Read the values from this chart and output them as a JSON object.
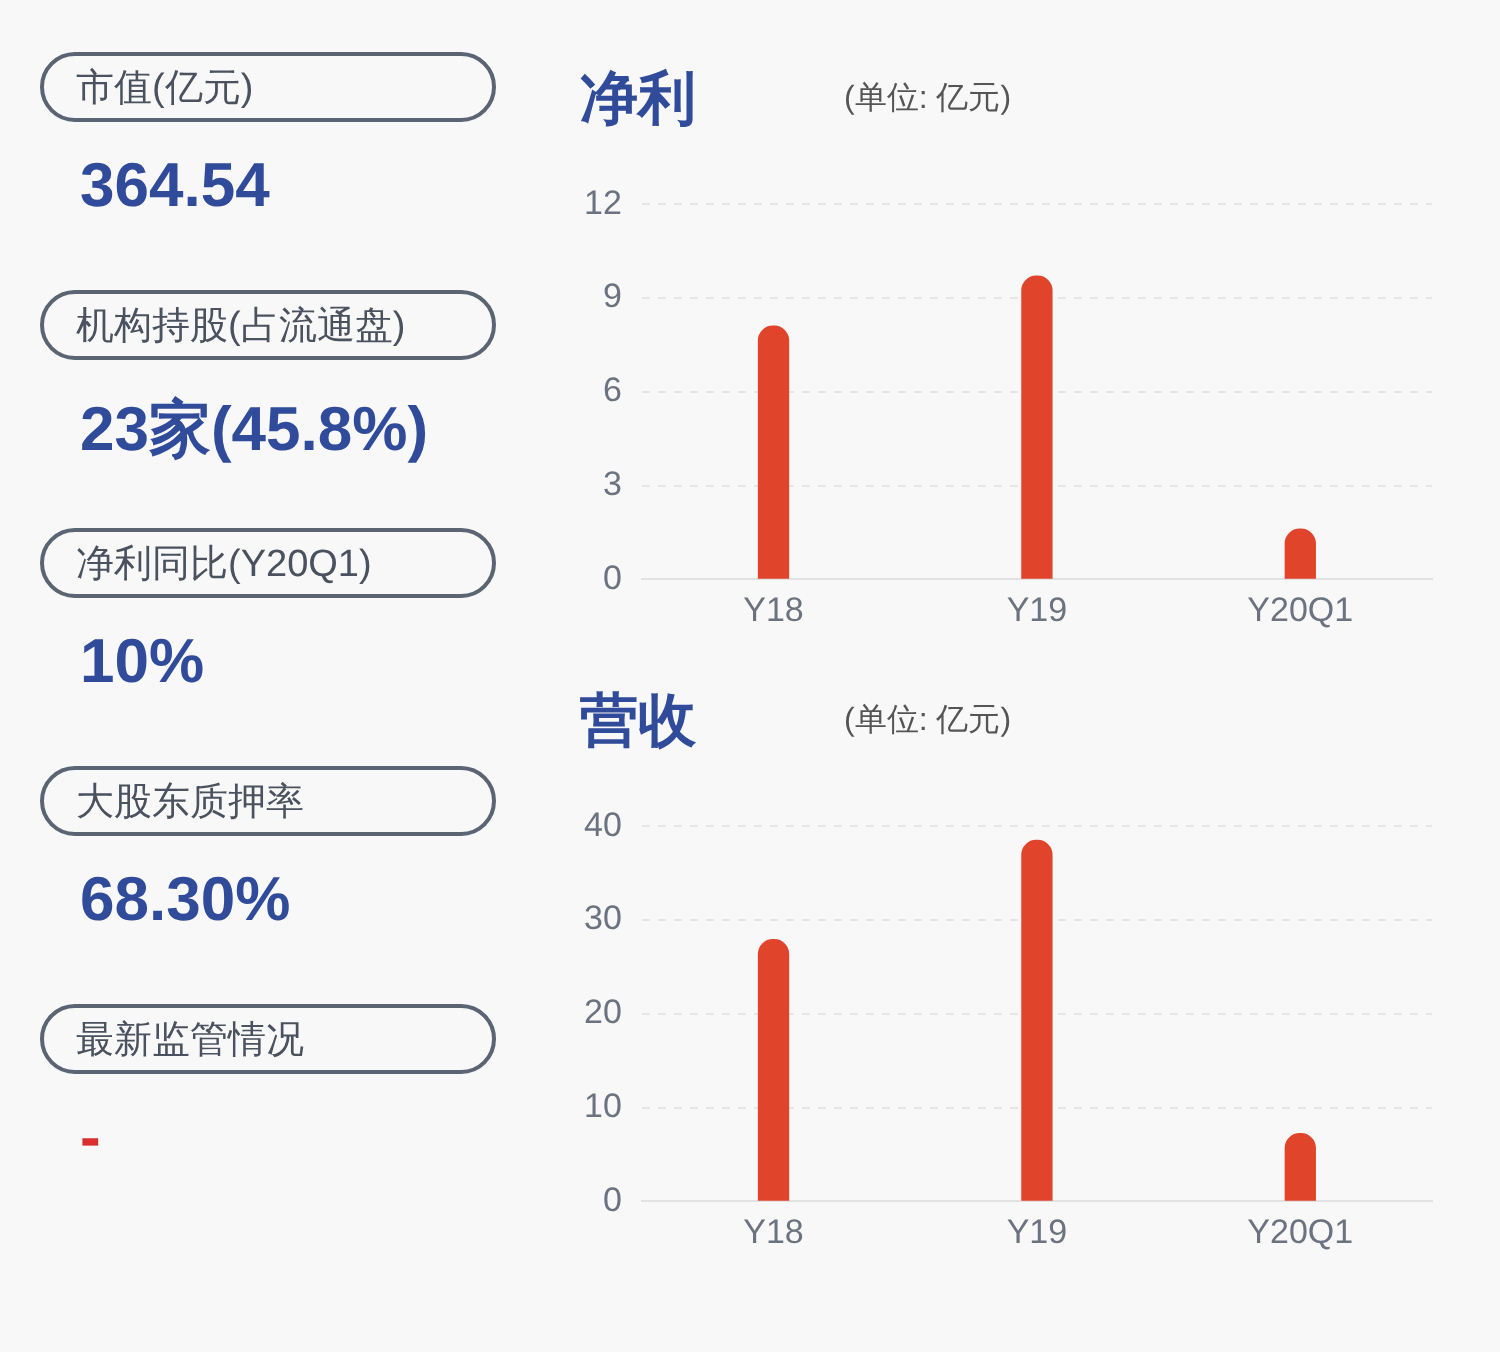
{
  "chart_data": [
    {
      "type": "other",
      "annotations": [
        "市值(亿元)",
        "364.54",
        "机构持股(占流通盘)",
        "23家(45.8%)",
        "净利同比(Y20Q1)",
        "10%",
        "大股东质押率",
        "68.30%",
        "最新监管情况",
        "-"
      ]
    },
    {
      "type": "bar",
      "title": "净利",
      "subtitle": "(单位: 亿元)",
      "categories": [
        "Y18",
        "Y19",
        "Y20Q1"
      ],
      "values": [
        8.1,
        9.7,
        1.6
      ],
      "color": "#e0452b",
      "ylim": [
        0,
        12
      ],
      "yticks": [
        0,
        3,
        6,
        9,
        12
      ],
      "grid": "y"
    },
    {
      "type": "bar",
      "title": "营收",
      "subtitle": "(单位: 亿元)",
      "categories": [
        "Y18",
        "Y19",
        "Y20Q1"
      ],
      "values": [
        27.9,
        38.5,
        7.2
      ],
      "color": "#e0452b",
      "ylim": [
        0,
        40
      ],
      "yticks": [
        0,
        10,
        20,
        30,
        40
      ],
      "grid": "y"
    }
  ]
}
